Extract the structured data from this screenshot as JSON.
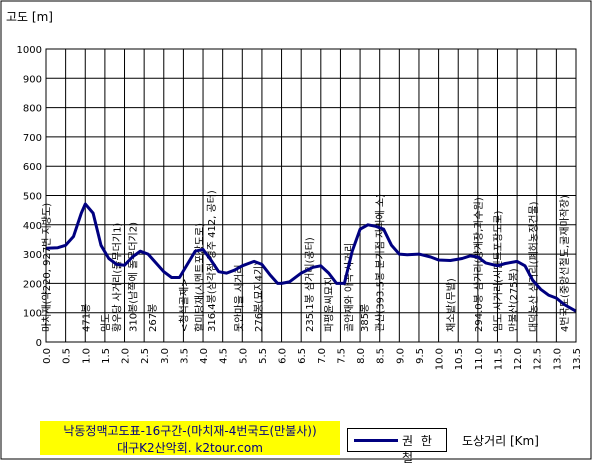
{
  "chart_data": {
    "type": "line",
    "title": "낙동정맥고도표-16구간-(마치재-4번국도(만불사))",
    "subtitle": "대구K2산악회. k2tour.com",
    "ylabel": "고도 [m]",
    "xlabel": "도상거리 [Km]",
    "ylim": [
      0,
      1000
    ],
    "xlim": [
      0,
      13.5
    ],
    "yticks": [
      0,
      100,
      200,
      300,
      400,
      500,
      600,
      700,
      800,
      900,
      1000
    ],
    "xticks": [
      "0.0",
      "0.5",
      "1.0",
      "1.5",
      "2.0",
      "2.5",
      "3.0",
      "3.5",
      "4.0",
      "4.5",
      "5.0",
      "5.5",
      "6.0",
      "6.5",
      "7.0",
      "7.5",
      "8.0",
      "8.5",
      "9.0",
      "9.5",
      "10.0",
      "10.5",
      "11.0",
      "11.5",
      "12.0",
      "12.5",
      "13.0",
      "13.5"
    ],
    "grid": true,
    "legend": "bottom-center",
    "series": [
      {
        "name": "권 한 철",
        "color": "#000080",
        "x": [
          0.0,
          0.3,
          0.5,
          0.7,
          0.9,
          1.0,
          1.2,
          1.4,
          1.6,
          1.8,
          2.0,
          2.2,
          2.4,
          2.6,
          2.8,
          3.0,
          3.2,
          3.4,
          3.6,
          3.8,
          4.0,
          4.2,
          4.4,
          4.6,
          4.8,
          5.0,
          5.3,
          5.5,
          5.7,
          5.9,
          6.0,
          6.2,
          6.5,
          6.8,
          7.0,
          7.2,
          7.4,
          7.6,
          7.8,
          8.0,
          8.2,
          8.4,
          8.6,
          8.8,
          9.0,
          9.2,
          9.5,
          9.8,
          10.0,
          10.3,
          10.6,
          10.8,
          11.0,
          11.2,
          11.5,
          11.7,
          12.0,
          12.2,
          12.4,
          12.6,
          12.8,
          13.0,
          13.2,
          13.5
        ],
        "y": [
          320,
          322,
          330,
          360,
          440,
          471,
          440,
          330,
          285,
          265,
          262,
          290,
          310,
          300,
          270,
          240,
          220,
          220,
          265,
          310,
          316,
          280,
          240,
          235,
          245,
          260,
          275,
          265,
          230,
          200,
          200,
          205,
          235,
          255,
          260,
          235,
          200,
          200,
          310,
          385,
          400,
          395,
          385,
          330,
          300,
          298,
          300,
          290,
          280,
          278,
          285,
          294,
          290,
          270,
          260,
          268,
          275,
          260,
          210,
          180,
          160,
          150,
          128,
          105
        ]
      }
    ],
    "annotations": [
      {
        "x": 0.0,
        "text": "마치재(약220,  927번 지방도)"
      },
      {
        "x": 1.0,
        "text": "471봉"
      },
      {
        "x": 1.5,
        "text": "임도"
      },
      {
        "x": 1.8,
        "text": "황우당 사거리(돌무더기1)"
      },
      {
        "x": 2.2,
        "text": "310봉(남쪽에 돌무더기2)"
      },
      {
        "x": 2.7,
        "text": "267봉"
      },
      {
        "x": 3.5,
        "text": "<청석골재>"
      },
      {
        "x": 3.9,
        "text": "할미당재(시멘트포장도로)"
      },
      {
        "x": 4.2,
        "text": "316.4봉(삼각점 경주 412, 공터)"
      },
      {
        "x": 4.9,
        "text": "못안마을 사거리"
      },
      {
        "x": 5.4,
        "text": "276봉(묘지4기)"
      },
      {
        "x": 6.7,
        "text": "235.1봉 삼거리(공터)"
      },
      {
        "x": 7.2,
        "text": "파평윤씨묘지"
      },
      {
        "x": 7.7,
        "text": "골안재와 아곡 사거리"
      },
      {
        "x": 8.1,
        "text": "385봉"
      },
      {
        "x": 8.5,
        "text": "관산(393.5봉 분기점 자리에 소)"
      },
      {
        "x": 10.3,
        "text": "채소밭(무밭)"
      },
      {
        "x": 11.0,
        "text": "294.0봉 삼거리(양계장,과수원)"
      },
      {
        "x": 11.5,
        "text": "임도 사거리(시멘트포장도로)"
      },
      {
        "x": 11.9,
        "text": "만불산(275봉)"
      },
      {
        "x": 12.4,
        "text": "대덕농산 삼거리(폐허농장건물)"
      },
      {
        "x": 13.2,
        "text": "4번국도(중앙선철도,굴재마작장)"
      }
    ]
  }
}
